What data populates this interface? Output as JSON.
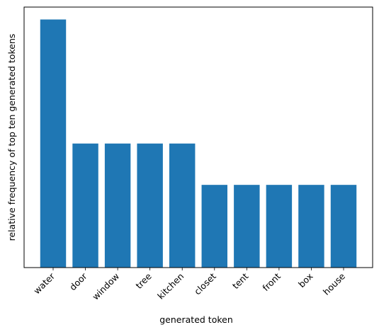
{
  "chart_data": {
    "type": "bar",
    "categories": [
      "water",
      "door",
      "window",
      "tree",
      "kitchen",
      "closet",
      "tent",
      "front",
      "box",
      "house"
    ],
    "values": [
      6,
      3,
      3,
      3,
      3,
      2,
      2,
      2,
      2,
      2
    ],
    "xlabel": "generated token",
    "ylabel": "relative frequency of top ten generated tokens",
    "ylim": [
      0,
      6.3
    ],
    "y_ticks_shown": false,
    "grid": false,
    "bar_color": "#1f77b4"
  }
}
